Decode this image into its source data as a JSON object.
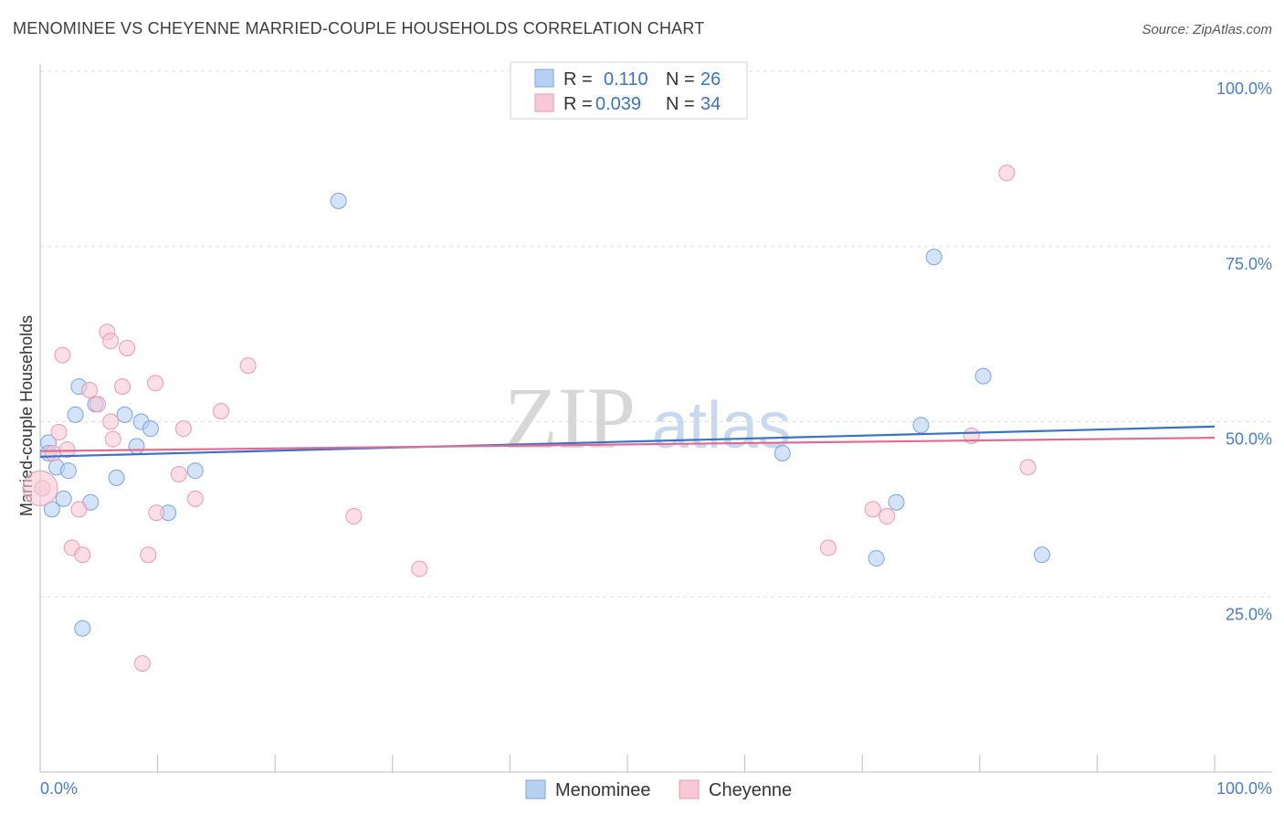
{
  "header": {
    "title": "MENOMINEE VS CHEYENNE MARRIED-COUPLE HOUSEHOLDS CORRELATION CHART",
    "source": "Source: ZipAtlas.com"
  },
  "colors": {
    "menominee_fill": "#b8d1f3",
    "menominee_stroke": "#7aa5de",
    "menominee_line": "#3a72c8",
    "cheyenne_fill": "#f8c8d6",
    "cheyenne_stroke": "#e99ab3",
    "cheyenne_line": "#e06c95",
    "tick_text": "#4a7cc9"
  },
  "legend_top": {
    "menominee": {
      "r_label": "R =",
      "r_value": "0.110",
      "n_label": "N =",
      "n_value": "26"
    },
    "cheyenne": {
      "r_label": "R =",
      "r_value": "0.039",
      "n_label": "N =",
      "n_value": "34"
    }
  },
  "watermark": {
    "zip": "ZIP",
    "atlas": "atlas"
  },
  "chart_data": {
    "type": "scatter",
    "title": "MENOMINEE VS CHEYENNE MARRIED-COUPLE HOUSEHOLDS CORRELATION CHART",
    "xlabel": "",
    "ylabel": "Married-couple Households",
    "xlim": [
      0,
      100
    ],
    "ylim": [
      0,
      100
    ],
    "x_tick_labels": [
      "0.0%",
      "100.0%"
    ],
    "y_ticks": [
      25,
      50,
      75,
      100
    ],
    "y_tick_labels": [
      "25.0%",
      "50.0%",
      "75.0%",
      "100.0%"
    ],
    "grid": true,
    "legend_position": "bottom-center",
    "series": [
      {
        "name": "Menominee",
        "color": "#b8d1f3",
        "trend": {
          "x": [
            0,
            100
          ],
          "y": [
            45.0,
            49.3
          ]
        },
        "points": [
          {
            "x": 0.7,
            "y": 47.0
          },
          {
            "x": 0.7,
            "y": 45.5
          },
          {
            "x": 1.0,
            "y": 37.5
          },
          {
            "x": 1.4,
            "y": 43.5
          },
          {
            "x": 2.0,
            "y": 39.0
          },
          {
            "x": 2.4,
            "y": 43.0
          },
          {
            "x": 3.0,
            "y": 51.0
          },
          {
            "x": 3.3,
            "y": 55.0
          },
          {
            "x": 3.6,
            "y": 20.5
          },
          {
            "x": 4.3,
            "y": 38.5
          },
          {
            "x": 4.7,
            "y": 52.5
          },
          {
            "x": 6.5,
            "y": 42.0
          },
          {
            "x": 7.2,
            "y": 51.0
          },
          {
            "x": 8.2,
            "y": 46.5
          },
          {
            "x": 8.6,
            "y": 50.0
          },
          {
            "x": 9.4,
            "y": 49.0
          },
          {
            "x": 10.9,
            "y": 37.0
          },
          {
            "x": 13.2,
            "y": 43.0
          },
          {
            "x": 25.4,
            "y": 81.5
          },
          {
            "x": 63.2,
            "y": 45.5
          },
          {
            "x": 71.2,
            "y": 30.5
          },
          {
            "x": 72.9,
            "y": 38.5
          },
          {
            "x": 75.0,
            "y": 49.5
          },
          {
            "x": 76.1,
            "y": 73.5
          },
          {
            "x": 80.3,
            "y": 56.5
          },
          {
            "x": 85.3,
            "y": 31.0
          }
        ]
      },
      {
        "name": "Cheyenne",
        "color": "#f8c8d6",
        "trend": {
          "x": [
            0,
            100
          ],
          "y": [
            45.8,
            47.7
          ]
        },
        "points": [
          {
            "x": 0.2,
            "y": 40.5
          },
          {
            "x": 1.1,
            "y": 45.5
          },
          {
            "x": 1.6,
            "y": 48.5
          },
          {
            "x": 1.9,
            "y": 59.5
          },
          {
            "x": 2.3,
            "y": 46.0
          },
          {
            "x": 2.7,
            "y": 32.0
          },
          {
            "x": 3.3,
            "y": 37.5
          },
          {
            "x": 3.6,
            "y": 31.0
          },
          {
            "x": 4.2,
            "y": 54.5
          },
          {
            "x": 4.9,
            "y": 52.5
          },
          {
            "x": 5.7,
            "y": 62.8
          },
          {
            "x": 6.0,
            "y": 61.5
          },
          {
            "x": 6.0,
            "y": 50.0
          },
          {
            "x": 6.2,
            "y": 47.5
          },
          {
            "x": 7.0,
            "y": 55.0
          },
          {
            "x": 7.4,
            "y": 60.5
          },
          {
            "x": 8.7,
            "y": 15.5
          },
          {
            "x": 9.2,
            "y": 31.0
          },
          {
            "x": 9.8,
            "y": 55.5
          },
          {
            "x": 9.9,
            "y": 37.0
          },
          {
            "x": 11.8,
            "y": 42.5
          },
          {
            "x": 12.2,
            "y": 49.0
          },
          {
            "x": 13.2,
            "y": 39.0
          },
          {
            "x": 15.4,
            "y": 51.5
          },
          {
            "x": 17.7,
            "y": 58.0
          },
          {
            "x": 26.7,
            "y": 36.5
          },
          {
            "x": 32.3,
            "y": 29.0
          },
          {
            "x": 67.1,
            "y": 32.0
          },
          {
            "x": 70.9,
            "y": 37.5
          },
          {
            "x": 72.1,
            "y": 36.5
          },
          {
            "x": 79.3,
            "y": 48.0
          },
          {
            "x": 82.3,
            "y": 85.5
          },
          {
            "x": 84.1,
            "y": 43.5
          },
          {
            "x": 0.0,
            "y": 40.5
          }
        ]
      }
    ]
  }
}
